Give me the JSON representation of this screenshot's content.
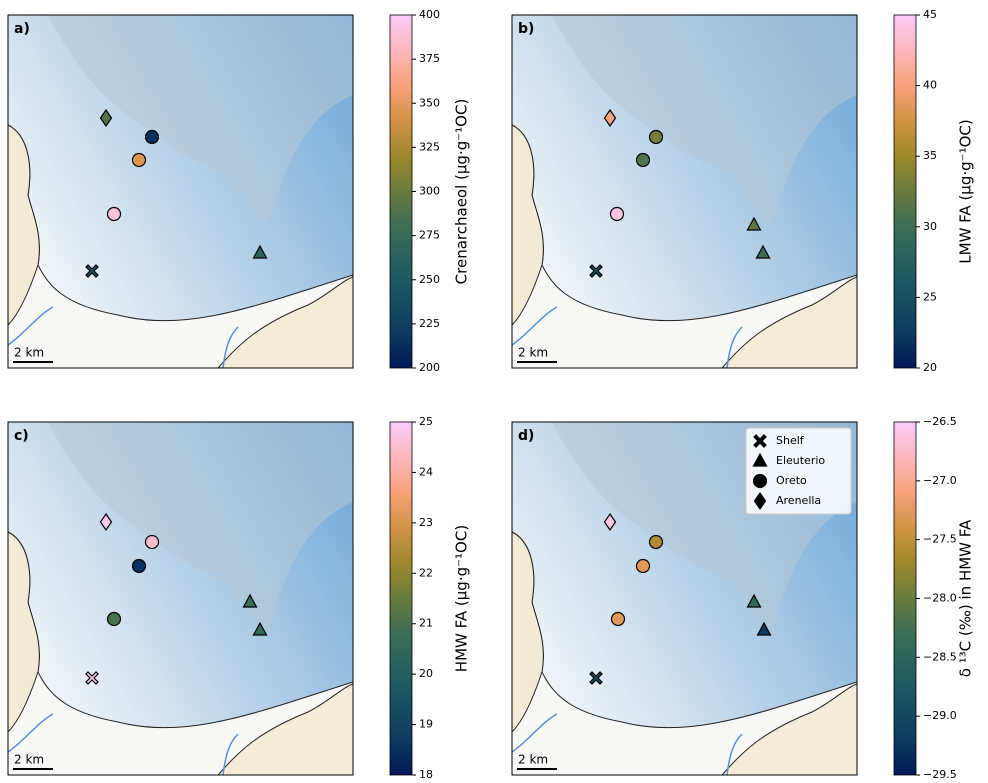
{
  "legend": [
    "Shelf",
    "Eleuterio",
    "Oreto",
    "Arenella"
  ],
  "scale_bar": "2 km",
  "panels": [
    {
      "label": "a)",
      "colorbar_label": "Crenarchaeol (µg·g⁻¹OC)",
      "clim": [
        200,
        400
      ],
      "ticks": [
        200,
        225,
        250,
        275,
        300,
        325,
        350,
        375,
        400
      ],
      "values": [
        [
          245
        ],
        [
          265
        ],
        [
          215,
          345,
          390
        ],
        [
          290
        ]
      ]
    },
    {
      "label": "b)",
      "colorbar_label": "LMW FA (µg·g⁻¹OC)",
      "clim": [
        20,
        45
      ],
      "ticks": [
        20,
        25,
        30,
        35,
        40,
        45
      ],
      "values": [
        [
          25
        ],
        [
          30,
          32
        ],
        [
          33,
          31,
          44
        ],
        [
          40
        ]
      ]
    },
    {
      "label": "c)",
      "colorbar_label": "HMW FA (µg·g⁻¹OC)",
      "clim": [
        18,
        25
      ],
      "ticks": [
        18,
        19,
        20,
        21,
        22,
        23,
        24,
        25
      ],
      "values": [
        [
          24.9
        ],
        [
          20.5,
          20.8
        ],
        [
          24.5,
          18.5,
          21
        ],
        [
          24.9
        ]
      ]
    },
    {
      "label": "d)",
      "colorbar_label": "δ ¹³C (‰) in HMW FA",
      "clim": [
        -29.5,
        -26.5
      ],
      "ticks": [
        {
          "value": -29.5,
          "label": "−29.5"
        },
        {
          "value": -29.0,
          "label": "−29.0"
        },
        {
          "value": -28.5,
          "label": "−28.5"
        },
        {
          "value": -28.0,
          "label": "−28.0"
        },
        {
          "value": -27.5,
          "label": "−27.5"
        },
        {
          "value": -27.0,
          "label": "−27.0"
        },
        {
          "value": -26.5,
          "label": "−26.5"
        }
      ],
      "values": [
        [
          -28.9
        ],
        [
          -29.2,
          -28.4
        ],
        [
          -27.6,
          -27.3,
          -27.3
        ],
        [
          -26.6
        ]
      ]
    }
  ]
}
